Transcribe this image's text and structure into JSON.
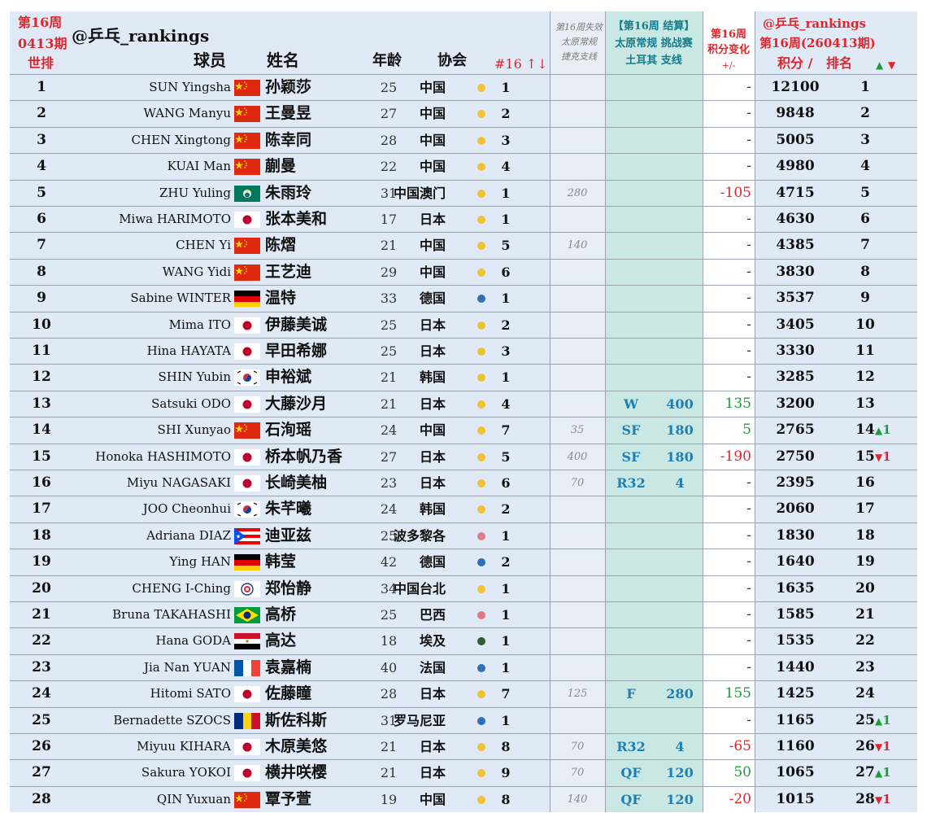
{
  "header": {
    "week_label": "第16周",
    "period_label": "0413期",
    "world_rank_label": "世排",
    "brand": "@乒乓_rankings",
    "col_player": "球员",
    "col_name": "姓名",
    "col_age": "年龄",
    "col_assoc": "协会",
    "col_assoc_rank": "#16 ↑↓",
    "fail_line1": "第16周失效",
    "fail_line2": "太原常规",
    "fail_line3": "捷克支线",
    "settle_line1": "【第16周 结算】",
    "settle_line2": "太原常规 挑战赛",
    "settle_line3": "土耳其 支线",
    "change_line1": "第16周",
    "change_line2": "积分变化",
    "change_line3": "+/-",
    "right_brand": "@乒乓_rankings",
    "right_week": "第16周(260413期)",
    "col_points": "积分 /",
    "col_rank": "排名",
    "up_symbol": "▲",
    "down_symbol": "▼"
  },
  "colors": {
    "china": "#de2910",
    "yellow_dot": "#f2c230",
    "blue_dot": "#2f6fb5",
    "pink_dot": "#e07a86",
    "green_dot": "#2e5d2e"
  },
  "rows": [
    {
      "rank": "1",
      "player": "SUN Yingsha",
      "flag": "cn",
      "name": "孙颖莎",
      "age": "25",
      "assoc": "中国",
      "dot": "yellow",
      "arank": "1",
      "fail": "",
      "round": "",
      "pts": "",
      "change": "-",
      "score": "12100",
      "wrank": "1",
      "move": "",
      "dir": ""
    },
    {
      "rank": "2",
      "player": "WANG Manyu",
      "flag": "cn",
      "name": "王曼昱",
      "age": "27",
      "assoc": "中国",
      "dot": "yellow",
      "arank": "2",
      "fail": "",
      "round": "",
      "pts": "",
      "change": "-",
      "score": "9848",
      "wrank": "2",
      "move": "",
      "dir": ""
    },
    {
      "rank": "3",
      "player": "CHEN Xingtong",
      "flag": "cn",
      "name": "陈幸同",
      "age": "28",
      "assoc": "中国",
      "dot": "yellow",
      "arank": "3",
      "fail": "",
      "round": "",
      "pts": "",
      "change": "-",
      "score": "5005",
      "wrank": "3",
      "move": "",
      "dir": ""
    },
    {
      "rank": "4",
      "player": "KUAI Man",
      "flag": "cn",
      "name": "蒯曼",
      "age": "22",
      "assoc": "中国",
      "dot": "yellow",
      "arank": "4",
      "fail": "",
      "round": "",
      "pts": "",
      "change": "-",
      "score": "4980",
      "wrank": "4",
      "move": "",
      "dir": ""
    },
    {
      "rank": "5",
      "player": "ZHU Yuling",
      "flag": "mo",
      "name": "朱雨玲",
      "age": "31",
      "assoc": "中国澳门",
      "dot": "yellow",
      "arank": "1",
      "fail": "280",
      "round": "",
      "pts": "",
      "change": "-105",
      "score": "4715",
      "wrank": "5",
      "move": "",
      "dir": ""
    },
    {
      "rank": "6",
      "player": "Miwa HARIMOTO",
      "flag": "jp",
      "name": "张本美和",
      "age": "17",
      "assoc": "日本",
      "dot": "yellow",
      "arank": "1",
      "fail": "",
      "round": "",
      "pts": "",
      "change": "-",
      "score": "4630",
      "wrank": "6",
      "move": "",
      "dir": ""
    },
    {
      "rank": "7",
      "player": "CHEN Yi",
      "flag": "cn",
      "name": "陈熠",
      "age": "21",
      "assoc": "中国",
      "dot": "yellow",
      "arank": "5",
      "fail": "140",
      "round": "",
      "pts": "",
      "change": "-",
      "score": "4385",
      "wrank": "7",
      "move": "",
      "dir": ""
    },
    {
      "rank": "8",
      "player": "WANG Yidi",
      "flag": "cn",
      "name": "王艺迪",
      "age": "29",
      "assoc": "中国",
      "dot": "yellow",
      "arank": "6",
      "fail": "",
      "round": "",
      "pts": "",
      "change": "-",
      "score": "3830",
      "wrank": "8",
      "move": "",
      "dir": ""
    },
    {
      "rank": "9",
      "player": "Sabine WINTER",
      "flag": "de",
      "name": "温特",
      "age": "33",
      "assoc": "德国",
      "dot": "blue",
      "arank": "1",
      "fail": "",
      "round": "",
      "pts": "",
      "change": "-",
      "score": "3537",
      "wrank": "9",
      "move": "",
      "dir": ""
    },
    {
      "rank": "10",
      "player": "Mima ITO",
      "flag": "jp",
      "name": "伊藤美诚",
      "age": "25",
      "assoc": "日本",
      "dot": "yellow",
      "arank": "2",
      "fail": "",
      "round": "",
      "pts": "",
      "change": "-",
      "score": "3405",
      "wrank": "10",
      "move": "",
      "dir": ""
    },
    {
      "rank": "11",
      "player": "Hina HAYATA",
      "flag": "jp",
      "name": "早田希娜",
      "age": "25",
      "assoc": "日本",
      "dot": "yellow",
      "arank": "3",
      "fail": "",
      "round": "",
      "pts": "",
      "change": "-",
      "score": "3330",
      "wrank": "11",
      "move": "",
      "dir": ""
    },
    {
      "rank": "12",
      "player": "SHIN Yubin",
      "flag": "kr",
      "name": "申裕斌",
      "age": "21",
      "assoc": "韩国",
      "dot": "yellow",
      "arank": "1",
      "fail": "",
      "round": "",
      "pts": "",
      "change": "-",
      "score": "3285",
      "wrank": "12",
      "move": "",
      "dir": ""
    },
    {
      "rank": "13",
      "player": "Satsuki ODO",
      "flag": "jp",
      "name": "大藤沙月",
      "age": "21",
      "assoc": "日本",
      "dot": "yellow",
      "arank": "4",
      "fail": "",
      "round": "W",
      "pts": "400",
      "change": "135",
      "score": "3200",
      "wrank": "13",
      "move": "",
      "dir": ""
    },
    {
      "rank": "14",
      "player": "SHI Xunyao",
      "flag": "cn",
      "name": "石洵瑶",
      "age": "24",
      "assoc": "中国",
      "dot": "yellow",
      "arank": "7",
      "fail": "35",
      "round": "SF",
      "pts": "180",
      "change": "5",
      "score": "2765",
      "wrank": "14",
      "move": "1",
      "dir": "up"
    },
    {
      "rank": "15",
      "player": "Honoka HASHIMOTO",
      "flag": "jp",
      "name": "桥本帆乃香",
      "age": "27",
      "assoc": "日本",
      "dot": "yellow",
      "arank": "5",
      "fail": "400",
      "round": "SF",
      "pts": "180",
      "change": "-190",
      "score": "2750",
      "wrank": "15",
      "move": "1",
      "dir": "down"
    },
    {
      "rank": "16",
      "player": "Miyu NAGASAKI",
      "flag": "jp",
      "name": "长崎美柚",
      "age": "23",
      "assoc": "日本",
      "dot": "yellow",
      "arank": "6",
      "fail": "70",
      "round": "R32",
      "pts": "4",
      "change": "-",
      "score": "2395",
      "wrank": "16",
      "move": "",
      "dir": ""
    },
    {
      "rank": "17",
      "player": "JOO Cheonhui",
      "flag": "kr",
      "name": "朱芊曦",
      "age": "24",
      "assoc": "韩国",
      "dot": "yellow",
      "arank": "2",
      "fail": "",
      "round": "",
      "pts": "",
      "change": "-",
      "score": "2060",
      "wrank": "17",
      "move": "",
      "dir": ""
    },
    {
      "rank": "18",
      "player": "Adriana DIAZ",
      "flag": "pr",
      "name": "迪亚兹",
      "age": "25",
      "assoc": "波多黎各",
      "dot": "pink",
      "arank": "1",
      "fail": "",
      "round": "",
      "pts": "",
      "change": "-",
      "score": "1830",
      "wrank": "18",
      "move": "",
      "dir": ""
    },
    {
      "rank": "19",
      "player": "Ying HAN",
      "flag": "de",
      "name": "韩莹",
      "age": "42",
      "assoc": "德国",
      "dot": "blue",
      "arank": "2",
      "fail": "",
      "round": "",
      "pts": "",
      "change": "-",
      "score": "1640",
      "wrank": "19",
      "move": "",
      "dir": ""
    },
    {
      "rank": "20",
      "player": "CHENG I-Ching",
      "flag": "tpe",
      "name": "郑怡静",
      "age": "34",
      "assoc": "中国台北",
      "dot": "yellow",
      "arank": "1",
      "fail": "",
      "round": "",
      "pts": "",
      "change": "-",
      "score": "1635",
      "wrank": "20",
      "move": "",
      "dir": ""
    },
    {
      "rank": "21",
      "player": "Bruna TAKAHASHI",
      "flag": "br",
      "name": "高桥",
      "age": "25",
      "assoc": "巴西",
      "dot": "pink",
      "arank": "1",
      "fail": "",
      "round": "",
      "pts": "",
      "change": "-",
      "score": "1585",
      "wrank": "21",
      "move": "",
      "dir": ""
    },
    {
      "rank": "22",
      "player": "Hana GODA",
      "flag": "eg",
      "name": "高达",
      "age": "18",
      "assoc": "埃及",
      "dot": "green",
      "arank": "1",
      "fail": "",
      "round": "",
      "pts": "",
      "change": "-",
      "score": "1535",
      "wrank": "22",
      "move": "",
      "dir": ""
    },
    {
      "rank": "23",
      "player": "Jia Nan YUAN",
      "flag": "fr",
      "name": "袁嘉楠",
      "age": "40",
      "assoc": "法国",
      "dot": "blue",
      "arank": "1",
      "fail": "",
      "round": "",
      "pts": "",
      "change": "-",
      "score": "1440",
      "wrank": "23",
      "move": "",
      "dir": ""
    },
    {
      "rank": "24",
      "player": "Hitomi SATO",
      "flag": "jp",
      "name": "佐藤瞳",
      "age": "28",
      "assoc": "日本",
      "dot": "yellow",
      "arank": "7",
      "fail": "125",
      "round": "F",
      "pts": "280",
      "change": "155",
      "score": "1425",
      "wrank": "24",
      "move": "",
      "dir": ""
    },
    {
      "rank": "25",
      "player": "Bernadette SZOCS",
      "flag": "ro",
      "name": "斯佐科斯",
      "age": "31",
      "assoc": "罗马尼亚",
      "dot": "blue",
      "arank": "1",
      "fail": "",
      "round": "",
      "pts": "",
      "change": "-",
      "score": "1165",
      "wrank": "25",
      "move": "1",
      "dir": "up"
    },
    {
      "rank": "26",
      "player": "Miyuu KIHARA",
      "flag": "jp",
      "name": "木原美悠",
      "age": "21",
      "assoc": "日本",
      "dot": "yellow",
      "arank": "8",
      "fail": "70",
      "round": "R32",
      "pts": "4",
      "change": "-65",
      "score": "1160",
      "wrank": "26",
      "move": "1",
      "dir": "down"
    },
    {
      "rank": "27",
      "player": "Sakura YOKOI",
      "flag": "jp",
      "name": "横井咲樱",
      "age": "21",
      "assoc": "日本",
      "dot": "yellow",
      "arank": "9",
      "fail": "70",
      "round": "QF",
      "pts": "120",
      "change": "50",
      "score": "1065",
      "wrank": "27",
      "move": "1",
      "dir": "up"
    },
    {
      "rank": "28",
      "player": "QIN Yuxuan",
      "flag": "cn",
      "name": "覃予萱",
      "age": "19",
      "assoc": "中国",
      "dot": "yellow",
      "arank": "8",
      "fail": "140",
      "round": "QF",
      "pts": "120",
      "change": "-20",
      "score": "1015",
      "wrank": "28",
      "move": "1",
      "dir": "down"
    }
  ]
}
